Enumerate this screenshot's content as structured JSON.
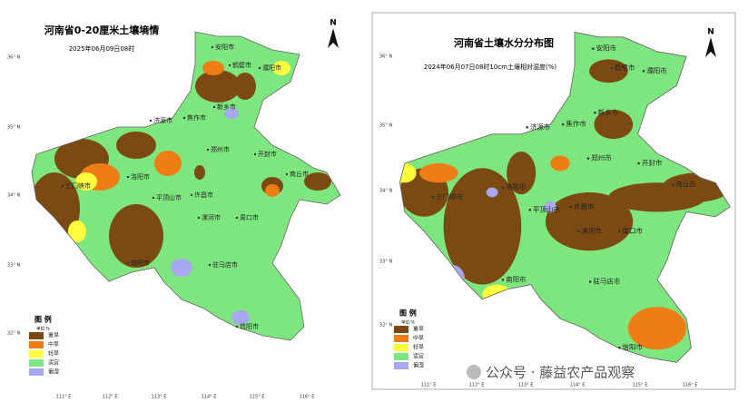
{
  "panels": [
    {
      "title": "河南省0-20厘米土壤墒情",
      "subtitle": "2025年06月09日08时",
      "legend": {
        "title": "图 例",
        "unit": "单位:%",
        "items": [
          {
            "label": "重旱",
            "color": "#7b4a12"
          },
          {
            "label": "中旱",
            "color": "#ee7d16"
          },
          {
            "label": "轻旱",
            "color": "#ffff3c"
          },
          {
            "label": "适宜",
            "color": "#7ee67e"
          },
          {
            "label": "偏湿",
            "color": "#a8a8f0"
          }
        ]
      },
      "north": "N",
      "lat_labels": [
        "36° N",
        "35° N",
        "34° N",
        "33° N",
        "32° N"
      ],
      "lon_labels": [
        "111° E",
        "112° E",
        "113° E",
        "114° E",
        "115° E",
        "116° E"
      ],
      "cities": [
        "安阳市",
        "鹤壁市",
        "濮阳市",
        "新乡市",
        "焦作市",
        "济源市",
        "郑州市",
        "开封市",
        "商丘市",
        "洛阳市",
        "三门峡市",
        "平顶山市",
        "许昌市",
        "漯河市",
        "周口市",
        "南阳市",
        "驻马店市",
        "信阳市"
      ]
    },
    {
      "title": "河南省土壤水分分布图",
      "subtitle": "2024年06月07日08时10cm土壤相对湿度(%)",
      "legend": {
        "title": "图 例",
        "unit": "单位:%",
        "items": [
          {
            "label": "重旱",
            "color": "#7b4a12"
          },
          {
            "label": "中旱",
            "color": "#ee7d16"
          },
          {
            "label": "轻旱",
            "color": "#ffff3c"
          },
          {
            "label": "适宜",
            "color": "#7ee67e"
          },
          {
            "label": "偏湿",
            "color": "#a8a8f0"
          }
        ]
      },
      "north": "N",
      "lat_labels": [
        "36° N",
        "35° N",
        "34° N",
        "33° N",
        "32° N"
      ],
      "lon_labels": [
        "111° E",
        "112° E",
        "113° E",
        "114° E",
        "115° E",
        "116° E"
      ],
      "cities": [
        "安阳市",
        "鹤壁市",
        "濮阳市",
        "新乡市",
        "焦作市",
        "济源市",
        "郑州市",
        "开封市",
        "商丘市",
        "洛阳市",
        "三门峡市",
        "平顶山市",
        "许昌市",
        "漯河市",
        "周口市",
        "南阳市",
        "驻马店市",
        "信阳市"
      ]
    }
  ],
  "watermark": "公众号 · 藤益农产品观察"
}
